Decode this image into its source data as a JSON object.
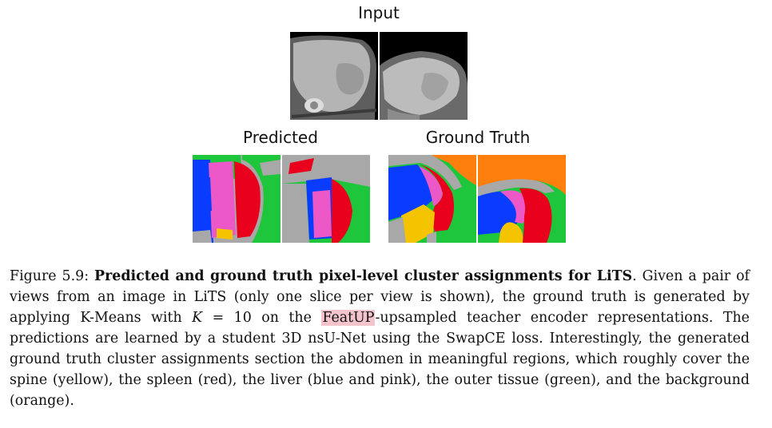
{
  "figure": {
    "input_label": "Input",
    "predicted_label": "Predicted",
    "ground_truth_label": "Ground Truth",
    "colors": {
      "spine": "#f4c400",
      "spleen": "#e8001c",
      "liver_blue": "#0a3cff",
      "liver_pink": "#ec58c8",
      "outer_tissue": "#1ec63c",
      "background": "#ff7f0e",
      "gray": "#a8a8a8"
    }
  },
  "caption": {
    "prefix": "Figure 5.9: ",
    "title": "Predicted and ground truth pixel-level cluster assignments for LiTS",
    "title_end": ".",
    "line1": " Given a pair of views from an image in LiTS (only one slice per view is shown), the ground truth is generated by applying K-Means with ",
    "math_k": "K",
    "math_eq": " = 10",
    "line2": " on the ",
    "highlight": "FeatUP",
    "line3": "-upsampled teacher encoder representations.  The predictions are learned by a student 3D nsU-Net using the SwapCE loss.  Interestingly, the generated ground truth cluster assignments section the abdomen in meaningful regions, which roughly cover the spine (yellow), the spleen (red), the liver (blue and pink), the outer tissue (green), and the background (orange)."
  }
}
